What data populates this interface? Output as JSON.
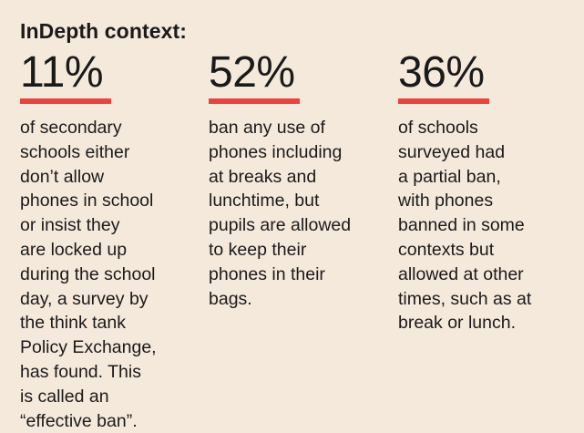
{
  "title": "InDepth context:",
  "colors": {
    "background": "#f5e9dc",
    "accent": "#e8433c",
    "text": "#1a1a1a"
  },
  "stats": [
    {
      "value": "11%",
      "description": "of secondary\nschools either\ndon’t allow\nphones in school\nor insist they\nare locked up\nduring the school\nday, a survey by\nthe think tank\nPolicy Exchange,\nhas found. This\nis called an\n“effective ban”."
    },
    {
      "value": "52%",
      "description": "ban any use of\nphones including\nat breaks and\nlunchtime, but\npupils are allowed\nto keep their\nphones in their\nbags."
    },
    {
      "value": "36%",
      "description": "of schools\nsurveyed had\na partial ban,\nwith phones\nbanned in some\ncontexts but\nallowed at other\ntimes, such as at\nbreak or lunch."
    }
  ]
}
